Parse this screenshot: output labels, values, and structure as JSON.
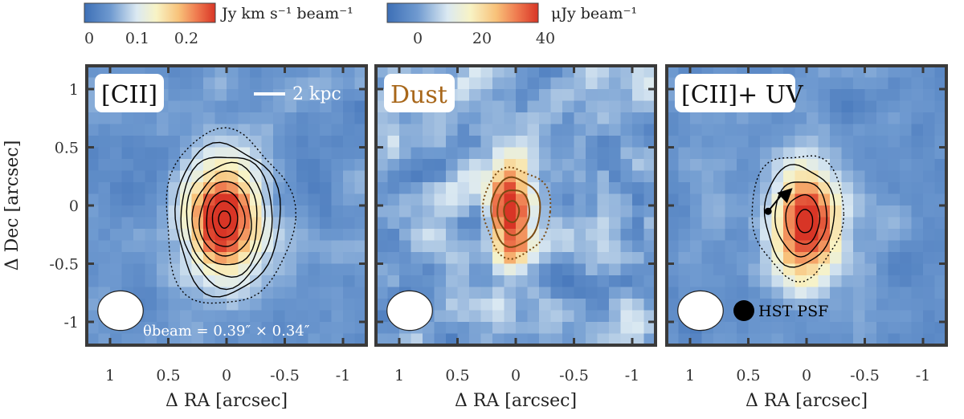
{
  "chart_data": [
    {
      "type": "heatmap",
      "title": "[CII]",
      "label_color": "#111111",
      "xlabel": "Δ RA [arcsec]",
      "ylabel": "Δ Dec [arcsec]",
      "xlim": [
        1.2,
        -1.2
      ],
      "ylim": [
        -1.2,
        1.2
      ],
      "xticks": [
        1,
        0.5,
        0,
        -0.5,
        -1
      ],
      "xtick_labels": [
        "1",
        "0.5",
        "0",
        "-0.5",
        "-1"
      ],
      "yticks": [
        1,
        0.5,
        0,
        -0.5,
        -1
      ],
      "ytick_labels": [
        "1",
        "0.5",
        "0",
        "-0.5",
        "-1"
      ],
      "colorbar": {
        "label": "Jy km s⁻¹ beam⁻¹",
        "range": [
          -0.03,
          0.25
        ],
        "ticks": [
          0,
          0.1,
          0.2
        ],
        "tick_labels": [
          "0",
          "0.1",
          "0.2"
        ]
      },
      "emission": {
        "center": [
          0.02,
          -0.12
        ],
        "sigma": [
          0.22,
          0.35
        ],
        "peak": 0.25
      },
      "contour_ra": [
        0.52,
        -0.53
      ],
      "contour_dec": [
        0.62,
        -0.85
      ],
      "contour_count": 8,
      "scalebar_label": "2 kpc",
      "beam_label": "θbeam = 0.39″ × 0.34″",
      "beam_arcsec": [
        0.39,
        0.34
      ]
    },
    {
      "type": "heatmap",
      "title": "Dust",
      "label_color": "#a8671a",
      "xlabel": "Δ RA [arcsec]",
      "xlim": [
        1.2,
        -1.2
      ],
      "ylim": [
        -1.2,
        1.2
      ],
      "xticks": [
        1,
        0.5,
        0,
        -0.5,
        -1
      ],
      "xtick_labels": [
        "1",
        "0.5",
        "0",
        "-0.5",
        "-1"
      ],
      "colorbar": {
        "label": "μJy beam⁻¹",
        "range": [
          -20,
          40
        ],
        "ticks": [
          0,
          20,
          40
        ],
        "tick_labels": [
          "0",
          "20",
          "40"
        ]
      },
      "emission": {
        "center": [
          0.05,
          -0.05
        ],
        "sigma": [
          0.12,
          0.3
        ],
        "peak": 40
      },
      "contour_ra": [
        0.27,
        -0.28
      ],
      "contour_dec": [
        0.32,
        -0.43
      ],
      "contour_count": 3,
      "beam_arcsec": [
        0.39,
        0.34
      ]
    },
    {
      "type": "heatmap",
      "title": "[CII]+ UV",
      "label_color": "#111111",
      "xlabel": "Δ RA [arcsec]",
      "xlim": [
        1.2,
        -1.2
      ],
      "ylim": [
        -1.2,
        1.2
      ],
      "xticks": [
        1,
        0.5,
        0,
        -0.5,
        -1
      ],
      "xtick_labels": [
        "1",
        "0.5",
        "0",
        "-0.5",
        "-1"
      ],
      "emission": {
        "center": [
          0.0,
          -0.15
        ],
        "sigma": [
          0.2,
          0.33
        ],
        "peak": 0.25
      },
      "contour_ra": [
        0.45,
        -0.3
      ],
      "contour_dec": [
        0.45,
        -0.6
      ],
      "contour_count": 4,
      "arrow_from": [
        0.33,
        -0.05
      ],
      "arrow_to": [
        0.12,
        0.15
      ],
      "psf_label": "HST PSF",
      "beam_arcsec": [
        0.39,
        0.34
      ]
    }
  ]
}
